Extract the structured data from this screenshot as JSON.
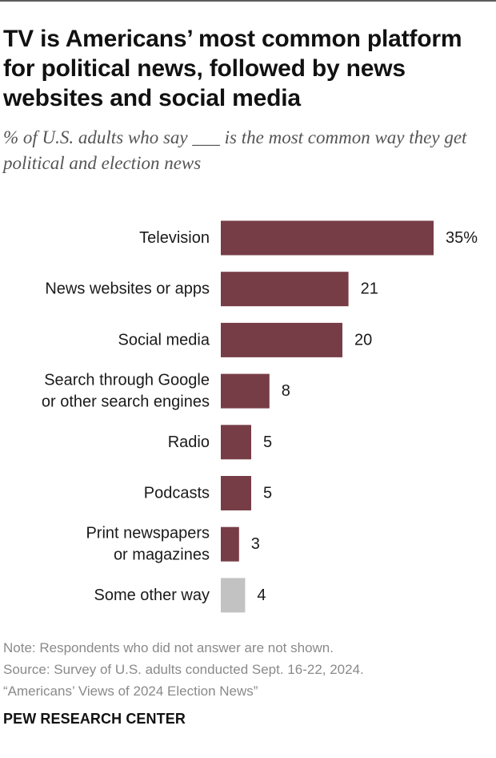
{
  "header": {
    "title": "TV is Americans’ most common platform for political news, followed by news websites and social media",
    "subtitle": "% of U.S. adults who say ___ is the most common way they get political and election news"
  },
  "chart_data": {
    "type": "bar",
    "orientation": "horizontal",
    "categories": [
      [
        "Television"
      ],
      [
        "News websites or apps"
      ],
      [
        "Social media"
      ],
      [
        "Search through Google",
        "or other search engines"
      ],
      [
        "Radio"
      ],
      [
        "Podcasts"
      ],
      [
        "Print newspapers",
        "or magazines"
      ],
      [
        "Some other way"
      ]
    ],
    "values": [
      35,
      21,
      20,
      8,
      5,
      5,
      3,
      4
    ],
    "value_labels": [
      "35%",
      "21",
      "20",
      "8",
      "5",
      "5",
      "3",
      "4"
    ],
    "xlim": [
      0,
      35
    ],
    "colors": [
      "#773d46",
      "#773d46",
      "#773d46",
      "#773d46",
      "#773d46",
      "#773d46",
      "#773d46",
      "#c2c2c2"
    ],
    "grid": false,
    "legend": "none"
  },
  "footer": {
    "note": "Note: Respondents who did not answer are not shown.",
    "source": "Source: Survey of U.S. adults conducted Sept. 16-22, 2024.",
    "report": "“Americans’ Views of 2024 Election News”",
    "brand": "PEW RESEARCH CENTER"
  }
}
